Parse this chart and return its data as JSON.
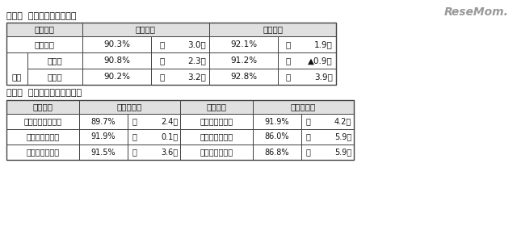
{
  "title1": "［大学  文理別就職内定率］",
  "title2": "［大学  地域別就職内定状況］",
  "watermark": "ReseMom.",
  "bg_color": "#ffffff",
  "border_color": "#444444",
  "header_bg": "#e0e0e0",
  "text_color": "#111111",
  "font_size": 7.5,
  "t1": {
    "hdr": [
      "区　　分",
      "文　　系",
      "理　　系"
    ],
    "row1": [
      "大　　学",
      "90.3%",
      "（",
      "3.0）",
      "92.1%",
      "（",
      "1.9）"
    ],
    "uchi": "うち",
    "row2": [
      "国公立",
      "90.8%",
      "（",
      "2.3）",
      "91.2%",
      "（",
      "▲0.9）"
    ],
    "row3": [
      "私　立",
      "90.2%",
      "（",
      "3.2）",
      "92.8%",
      "（",
      "3.9）"
    ]
  },
  "t2": {
    "hdr": [
      "地　　域",
      "就職内定率",
      "地　　域",
      "就職内定率"
    ],
    "rows": [
      [
        "北海道・東北地区",
        "89.7%",
        "（",
        "2.4）",
        "近　畿　地　区",
        "91.9%",
        "（",
        "4.2）"
      ],
      [
        "関　東　地　区",
        "91.9%",
        "（",
        "0.1）",
        "中国・四国地区",
        "86.0%",
        "（",
        "5.9）"
      ],
      [
        "中　部　地　区",
        "91.5%",
        "（",
        "3.6）",
        "九　州　地　区",
        "86.8%",
        "（",
        "5.9）"
      ]
    ]
  }
}
